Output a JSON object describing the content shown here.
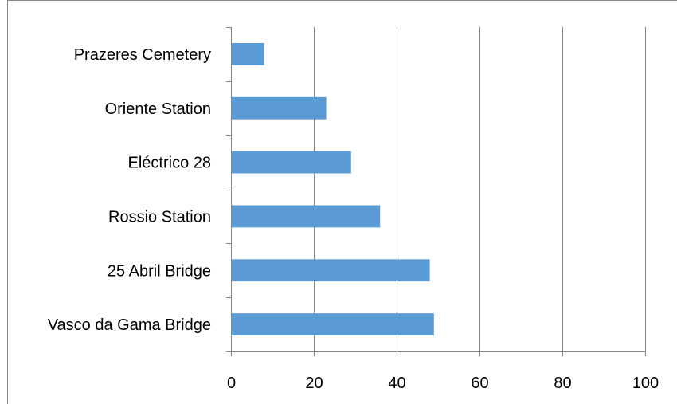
{
  "chart_data": {
    "type": "bar",
    "orientation": "horizontal",
    "categories": [
      "Prazeres Cemetery",
      "Oriente Station",
      "Eléctrico 28",
      "Rossio Station",
      "25 Abril Bridge",
      "Vasco da Gama Bridge"
    ],
    "values": [
      8,
      23,
      29,
      36,
      48,
      49
    ],
    "xlim": [
      0,
      100
    ],
    "xticks": [
      0,
      20,
      40,
      60,
      80,
      100
    ],
    "tick_labels": [
      "0",
      "20",
      "40",
      "60",
      "80",
      "100"
    ],
    "bar_color": "#5b9bd5",
    "grid": "vertical",
    "legend": "none"
  }
}
